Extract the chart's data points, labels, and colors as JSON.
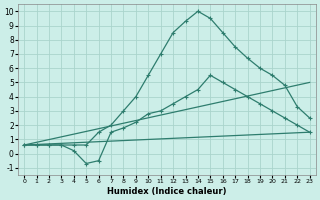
{
  "xlabel": "Humidex (Indice chaleur)",
  "bg_color": "#cceee8",
  "grid_color": "#aad4cc",
  "line_color": "#2e7d6e",
  "xlim": [
    -0.5,
    23.5
  ],
  "ylim": [
    -1.5,
    10.5
  ],
  "xticks": [
    0,
    1,
    2,
    3,
    4,
    5,
    6,
    7,
    8,
    9,
    10,
    11,
    12,
    13,
    14,
    15,
    16,
    17,
    18,
    19,
    20,
    21,
    22,
    23
  ],
  "yticks": [
    -1,
    0,
    1,
    2,
    3,
    4,
    5,
    6,
    7,
    8,
    9,
    10
  ],
  "line1_x": [
    0,
    1,
    2,
    3,
    4,
    5,
    6,
    7,
    8,
    9,
    10,
    11,
    12,
    13,
    14,
    15,
    16,
    17,
    18,
    19,
    20,
    21,
    22,
    23
  ],
  "line1_y": [
    0.6,
    0.6,
    0.6,
    0.6,
    0.6,
    0.6,
    1.5,
    2.0,
    3.0,
    4.0,
    5.5,
    7.0,
    8.5,
    9.3,
    10.0,
    9.5,
    8.5,
    7.5,
    6.7,
    6.0,
    5.5,
    4.8,
    3.3,
    2.5
  ],
  "line2_x": [
    0,
    1,
    2,
    3,
    4,
    5,
    6,
    7,
    8,
    9,
    10,
    11,
    12,
    13,
    14,
    15,
    16,
    17,
    18,
    19,
    20,
    21,
    22,
    23
  ],
  "line2_y": [
    0.6,
    0.6,
    0.6,
    0.6,
    0.2,
    -0.7,
    -0.5,
    1.5,
    1.8,
    2.2,
    2.8,
    3.0,
    3.5,
    4.0,
    4.5,
    5.5,
    5.0,
    4.5,
    4.0,
    3.5,
    3.0,
    2.5,
    2.0,
    1.5
  ],
  "line3_x": [
    0,
    23
  ],
  "line3_y": [
    0.6,
    5.0
  ],
  "line4_x": [
    0,
    23
  ],
  "line4_y": [
    0.6,
    1.5
  ]
}
